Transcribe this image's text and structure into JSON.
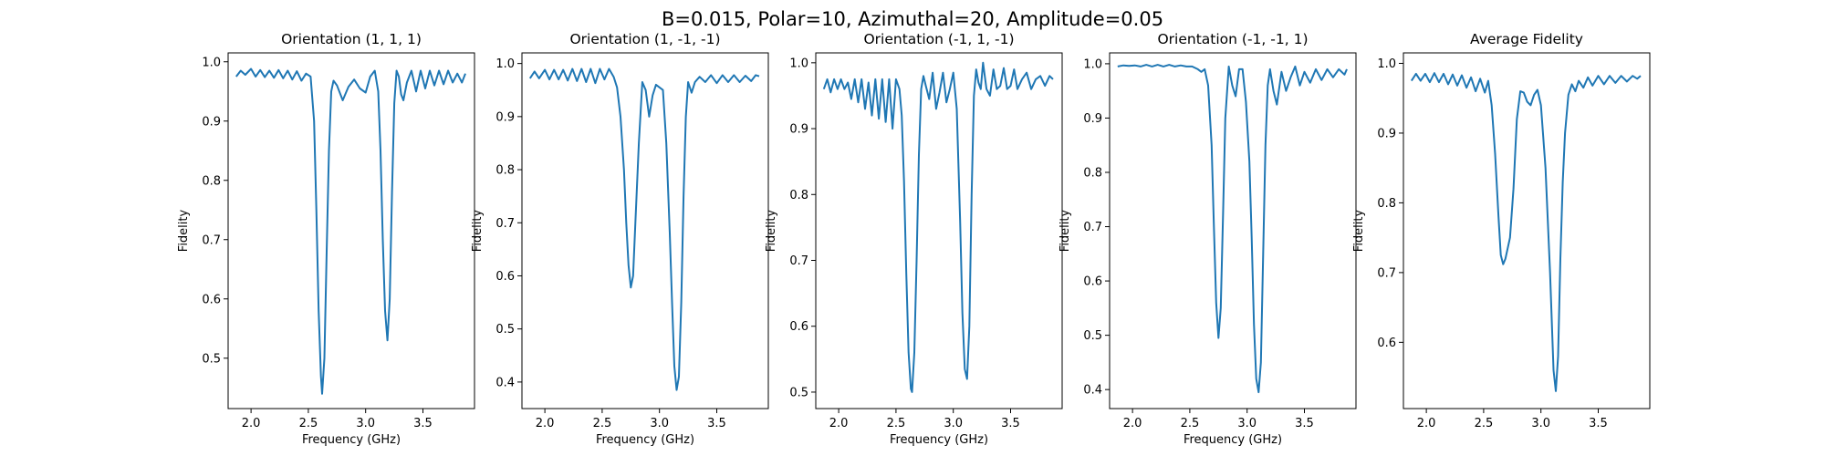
{
  "figure": {
    "suptitle": "B=0.015, Polar=10, Azimuthal=20, Amplitude=0.05"
  },
  "colors": {
    "series": "#1f77b4"
  },
  "chart_data": [
    {
      "type": "line",
      "title": "Orientation (1, 1, 1)",
      "xlabel": "Frequency (GHz)",
      "ylabel": "Fidelity",
      "xlim": [
        1.8,
        3.95
      ],
      "ylim": [
        0.415,
        1.015
      ],
      "xticks": [
        2.0,
        2.5,
        3.0,
        3.5
      ],
      "xtick_labels": [
        "2.0",
        "2.5",
        "3.0",
        "3.5"
      ],
      "yticks": [
        0.5,
        0.6,
        0.7,
        0.8,
        0.9,
        1.0
      ],
      "ytick_labels": [
        "0.5",
        "0.6",
        "0.7",
        "0.8",
        "0.9",
        "1.0"
      ],
      "x": [
        1.87,
        1.91,
        1.95,
        2.0,
        2.04,
        2.08,
        2.12,
        2.16,
        2.2,
        2.24,
        2.28,
        2.32,
        2.36,
        2.4,
        2.44,
        2.48,
        2.52,
        2.55,
        2.57,
        2.59,
        2.61,
        2.62,
        2.64,
        2.66,
        2.68,
        2.7,
        2.72,
        2.75,
        2.8,
        2.85,
        2.9,
        2.95,
        3.0,
        3.04,
        3.08,
        3.11,
        3.13,
        3.15,
        3.17,
        3.19,
        3.21,
        3.23,
        3.25,
        3.27,
        3.29,
        3.31,
        3.33,
        3.36,
        3.4,
        3.44,
        3.48,
        3.52,
        3.56,
        3.6,
        3.64,
        3.68,
        3.72,
        3.76,
        3.8,
        3.84,
        3.87
      ],
      "y": [
        0.975,
        0.985,
        0.978,
        0.988,
        0.975,
        0.986,
        0.974,
        0.985,
        0.973,
        0.986,
        0.972,
        0.985,
        0.97,
        0.984,
        0.968,
        0.98,
        0.975,
        0.9,
        0.75,
        0.58,
        0.47,
        0.44,
        0.5,
        0.68,
        0.85,
        0.95,
        0.968,
        0.96,
        0.935,
        0.958,
        0.97,
        0.955,
        0.948,
        0.975,
        0.985,
        0.95,
        0.85,
        0.7,
        0.58,
        0.53,
        0.6,
        0.78,
        0.93,
        0.985,
        0.975,
        0.945,
        0.935,
        0.965,
        0.985,
        0.95,
        0.985,
        0.955,
        0.985,
        0.96,
        0.985,
        0.962,
        0.985,
        0.965,
        0.98,
        0.965,
        0.98
      ]
    },
    {
      "type": "line",
      "title": "Orientation (1, -1, -1)",
      "xlabel": "Frequency (GHz)",
      "ylabel": "Fidelity",
      "xlim": [
        1.8,
        3.95
      ],
      "ylim": [
        0.35,
        1.02
      ],
      "xticks": [
        2.0,
        2.5,
        3.0,
        3.5
      ],
      "xtick_labels": [
        "2.0",
        "2.5",
        "3.0",
        "3.5"
      ],
      "yticks": [
        0.4,
        0.5,
        0.6,
        0.7,
        0.8,
        0.9,
        1.0
      ],
      "ytick_labels": [
        "0.4",
        "0.5",
        "0.6",
        "0.7",
        "0.8",
        "0.9",
        "1.0"
      ],
      "x": [
        1.87,
        1.91,
        1.95,
        2.0,
        2.04,
        2.08,
        2.12,
        2.16,
        2.2,
        2.24,
        2.28,
        2.32,
        2.36,
        2.4,
        2.44,
        2.48,
        2.52,
        2.56,
        2.6,
        2.63,
        2.66,
        2.69,
        2.71,
        2.73,
        2.75,
        2.77,
        2.79,
        2.82,
        2.85,
        2.88,
        2.91,
        2.94,
        2.97,
        3.0,
        3.03,
        3.06,
        3.09,
        3.11,
        3.13,
        3.15,
        3.17,
        3.19,
        3.21,
        3.23,
        3.25,
        3.28,
        3.31,
        3.35,
        3.4,
        3.45,
        3.5,
        3.55,
        3.6,
        3.65,
        3.7,
        3.75,
        3.8,
        3.84,
        3.87
      ],
      "y": [
        0.972,
        0.985,
        0.972,
        0.988,
        0.97,
        0.988,
        0.97,
        0.988,
        0.968,
        0.99,
        0.967,
        0.99,
        0.965,
        0.99,
        0.963,
        0.99,
        0.97,
        0.99,
        0.975,
        0.955,
        0.9,
        0.8,
        0.7,
        0.62,
        0.578,
        0.6,
        0.7,
        0.85,
        0.965,
        0.95,
        0.9,
        0.94,
        0.96,
        0.955,
        0.95,
        0.85,
        0.68,
        0.55,
        0.43,
        0.385,
        0.41,
        0.55,
        0.75,
        0.9,
        0.965,
        0.945,
        0.965,
        0.975,
        0.965,
        0.978,
        0.963,
        0.978,
        0.965,
        0.978,
        0.965,
        0.977,
        0.967,
        0.978,
        0.976
      ]
    },
    {
      "type": "line",
      "title": "Orientation (-1, 1, -1)",
      "xlabel": "Frequency (GHz)",
      "ylabel": "Fidelity",
      "xlim": [
        1.8,
        3.95
      ],
      "ylim": [
        0.475,
        1.015
      ],
      "xticks": [
        2.0,
        2.5,
        3.0,
        3.5
      ],
      "xtick_labels": [
        "2.0",
        "2.5",
        "3.0",
        "3.5"
      ],
      "yticks": [
        0.5,
        0.6,
        0.7,
        0.8,
        0.9,
        1.0
      ],
      "ytick_labels": [
        "0.5",
        "0.6",
        "0.7",
        "0.8",
        "0.9",
        "1.0"
      ],
      "x": [
        1.87,
        1.9,
        1.93,
        1.96,
        1.99,
        2.02,
        2.05,
        2.08,
        2.11,
        2.14,
        2.17,
        2.2,
        2.23,
        2.26,
        2.29,
        2.32,
        2.35,
        2.38,
        2.41,
        2.44,
        2.47,
        2.5,
        2.53,
        2.55,
        2.57,
        2.59,
        2.61,
        2.63,
        2.64,
        2.66,
        2.68,
        2.7,
        2.72,
        2.74,
        2.76,
        2.79,
        2.82,
        2.85,
        2.88,
        2.91,
        2.94,
        2.97,
        3.0,
        3.03,
        3.06,
        3.08,
        3.1,
        3.12,
        3.14,
        3.16,
        3.18,
        3.2,
        3.22,
        3.24,
        3.26,
        3.29,
        3.32,
        3.35,
        3.38,
        3.41,
        3.44,
        3.47,
        3.5,
        3.53,
        3.56,
        3.6,
        3.64,
        3.68,
        3.72,
        3.76,
        3.8,
        3.84,
        3.87
      ],
      "y": [
        0.96,
        0.975,
        0.955,
        0.975,
        0.96,
        0.975,
        0.96,
        0.97,
        0.945,
        0.975,
        0.94,
        0.975,
        0.93,
        0.97,
        0.92,
        0.975,
        0.915,
        0.975,
        0.91,
        0.975,
        0.9,
        0.975,
        0.96,
        0.92,
        0.82,
        0.68,
        0.56,
        0.505,
        0.5,
        0.56,
        0.7,
        0.86,
        0.96,
        0.98,
        0.965,
        0.945,
        0.985,
        0.93,
        0.955,
        0.985,
        0.94,
        0.96,
        0.985,
        0.93,
        0.76,
        0.62,
        0.535,
        0.52,
        0.6,
        0.8,
        0.95,
        0.99,
        0.97,
        0.96,
        1.0,
        0.96,
        0.95,
        0.99,
        0.96,
        0.965,
        0.992,
        0.96,
        0.965,
        0.99,
        0.96,
        0.975,
        0.985,
        0.96,
        0.975,
        0.98,
        0.965,
        0.98,
        0.975
      ]
    },
    {
      "type": "line",
      "title": "Orientation (-1, -1, 1)",
      "xlabel": "Frequency (GHz)",
      "ylabel": "Fidelity",
      "xlim": [
        1.8,
        3.95
      ],
      "ylim": [
        0.365,
        1.02
      ],
      "xticks": [
        2.0,
        2.5,
        3.0,
        3.5
      ],
      "xtick_labels": [
        "2.0",
        "2.5",
        "3.0",
        "3.5"
      ],
      "yticks": [
        0.4,
        0.5,
        0.6,
        0.7,
        0.8,
        0.9,
        1.0
      ],
      "ytick_labels": [
        "0.4",
        "0.5",
        "0.6",
        "0.7",
        "0.8",
        "0.9",
        "1.0"
      ],
      "x": [
        1.87,
        1.92,
        1.97,
        2.02,
        2.07,
        2.12,
        2.17,
        2.22,
        2.27,
        2.32,
        2.37,
        2.42,
        2.47,
        2.52,
        2.57,
        2.6,
        2.63,
        2.66,
        2.69,
        2.71,
        2.73,
        2.75,
        2.77,
        2.79,
        2.81,
        2.84,
        2.87,
        2.9,
        2.93,
        2.96,
        2.99,
        3.02,
        3.04,
        3.06,
        3.08,
        3.1,
        3.12,
        3.14,
        3.16,
        3.18,
        3.2,
        3.23,
        3.26,
        3.3,
        3.34,
        3.38,
        3.42,
        3.46,
        3.5,
        3.55,
        3.6,
        3.65,
        3.7,
        3.75,
        3.8,
        3.85,
        3.87
      ],
      "y": [
        0.995,
        0.997,
        0.996,
        0.997,
        0.995,
        0.998,
        0.995,
        0.998,
        0.995,
        0.998,
        0.995,
        0.997,
        0.995,
        0.995,
        0.99,
        0.985,
        0.99,
        0.96,
        0.85,
        0.7,
        0.56,
        0.495,
        0.55,
        0.72,
        0.9,
        0.995,
        0.96,
        0.94,
        0.99,
        0.99,
        0.93,
        0.82,
        0.68,
        0.52,
        0.42,
        0.395,
        0.45,
        0.65,
        0.85,
        0.96,
        0.99,
        0.95,
        0.925,
        0.985,
        0.95,
        0.975,
        0.995,
        0.96,
        0.985,
        0.965,
        0.99,
        0.97,
        0.99,
        0.975,
        0.99,
        0.98,
        0.99
      ]
    },
    {
      "type": "line",
      "title": "Average Fidelity",
      "xlabel": "",
      "ylabel": "Fidelity",
      "xlim": [
        1.8,
        3.95
      ],
      "ylim": [
        0.505,
        1.015
      ],
      "xticks": [
        2.0,
        2.5,
        3.0,
        3.5
      ],
      "xtick_labels": [
        "2.0",
        "2.5",
        "3.0",
        "3.5"
      ],
      "yticks": [
        0.6,
        0.7,
        0.8,
        0.9,
        1.0
      ],
      "ytick_labels": [
        "0.6",
        "0.7",
        "0.8",
        "0.9",
        "1.0"
      ],
      "x": [
        1.87,
        1.91,
        1.95,
        1.99,
        2.03,
        2.07,
        2.11,
        2.15,
        2.19,
        2.23,
        2.27,
        2.31,
        2.35,
        2.39,
        2.43,
        2.47,
        2.51,
        2.54,
        2.57,
        2.6,
        2.63,
        2.65,
        2.67,
        2.69,
        2.71,
        2.73,
        2.76,
        2.79,
        2.82,
        2.85,
        2.88,
        2.91,
        2.94,
        2.97,
        3.0,
        3.04,
        3.08,
        3.11,
        3.13,
        3.15,
        3.17,
        3.19,
        3.21,
        3.24,
        3.27,
        3.3,
        3.33,
        3.37,
        3.41,
        3.45,
        3.5,
        3.55,
        3.6,
        3.65,
        3.7,
        3.75,
        3.8,
        3.84,
        3.87
      ],
      "y": [
        0.975,
        0.985,
        0.975,
        0.985,
        0.973,
        0.986,
        0.973,
        0.985,
        0.97,
        0.984,
        0.968,
        0.983,
        0.965,
        0.98,
        0.96,
        0.978,
        0.958,
        0.975,
        0.94,
        0.87,
        0.78,
        0.725,
        0.712,
        0.72,
        0.735,
        0.75,
        0.82,
        0.92,
        0.96,
        0.958,
        0.945,
        0.94,
        0.955,
        0.962,
        0.94,
        0.85,
        0.7,
        0.56,
        0.53,
        0.58,
        0.72,
        0.83,
        0.9,
        0.955,
        0.97,
        0.96,
        0.975,
        0.965,
        0.98,
        0.968,
        0.982,
        0.97,
        0.982,
        0.972,
        0.982,
        0.974,
        0.982,
        0.978,
        0.982
      ]
    }
  ]
}
